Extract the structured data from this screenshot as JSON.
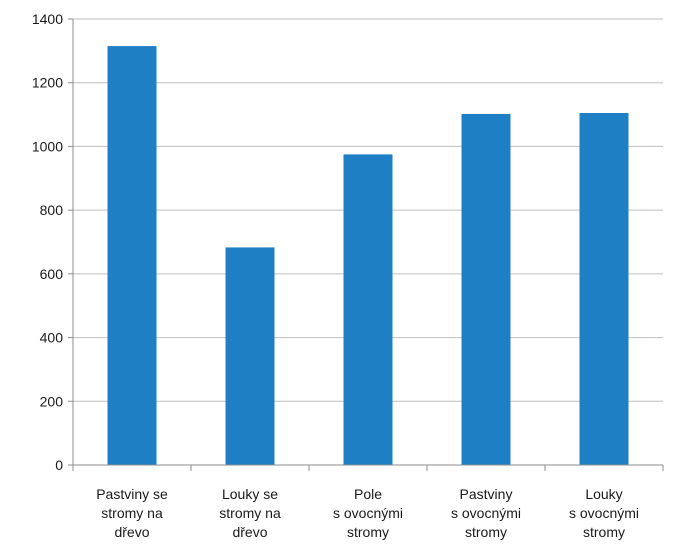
{
  "chart_data": {
    "type": "bar",
    "title": "",
    "xlabel": "",
    "ylabel": "",
    "categories": [
      "Pastviny se stromy na dřevo",
      "Louky se stromy na dřevo",
      "Pole s ovocnými stromy",
      "Pastviny s ovocnými stromy",
      "Louky s ovocnými stromy"
    ],
    "category_label_lines": [
      [
        "Pastviny se",
        "stromy na",
        "dřevo"
      ],
      [
        "Louky se",
        "stromy na",
        "dřevo"
      ],
      [
        "Pole",
        "s ovocnými",
        "stromy"
      ],
      [
        "Pastviny",
        "s ovocnými",
        "stromy"
      ],
      [
        "Louky",
        "s ovocnými",
        "stromy"
      ]
    ],
    "values": [
      1315,
      683,
      975,
      1102,
      1105
    ],
    "ylim": [
      0,
      1400
    ],
    "yticks": [
      0,
      200,
      400,
      600,
      800,
      1000,
      1200,
      1400
    ],
    "grid": true,
    "legend": "none",
    "bar_color": "#1f7fc4",
    "grid_color": "#bfbfbf",
    "axis_color": "#8c8c8c"
  }
}
